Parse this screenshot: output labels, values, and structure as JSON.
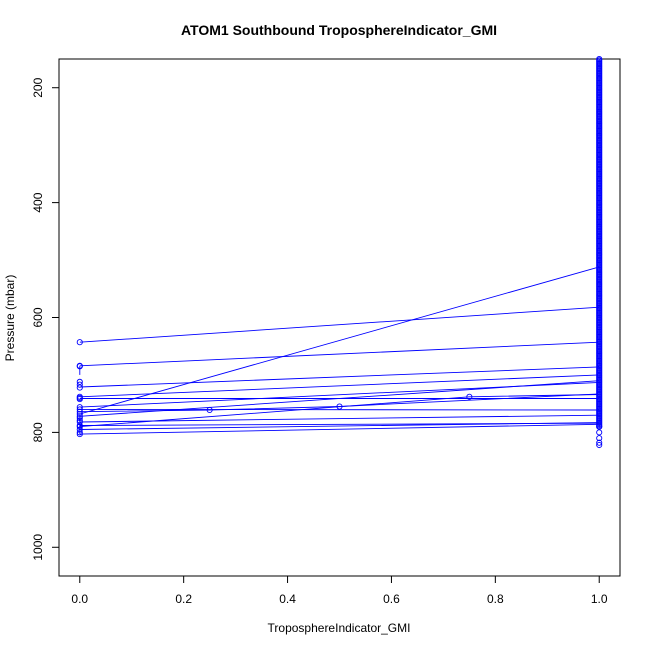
{
  "chart_data": {
    "type": "line",
    "title": "ATOM1 Southbound TroposphereIndicator_GMI",
    "xlabel": "TroposphereIndicator_GMI",
    "ylabel": "Pressure (mbar)",
    "xlim": [
      -0.04,
      1.04
    ],
    "ylim": [
      1050,
      150
    ],
    "y_reversed": true,
    "x_ticks": [
      "0.0",
      "0.2",
      "0.4",
      "0.6",
      "0.8",
      "1.0"
    ],
    "x_tick_values": [
      0,
      0.2,
      0.4,
      0.6,
      0.8,
      1.0
    ],
    "y_ticks": [
      "200",
      "400",
      "600",
      "800",
      "1000"
    ],
    "y_tick_values": [
      200,
      400,
      600,
      800,
      1000
    ],
    "grid": false,
    "legend": "none",
    "color": "#0000ff",
    "line_segments": [
      [
        [
          0,
          643
        ],
        [
          1,
          582
        ]
      ],
      [
        [
          0,
          684
        ],
        [
          1,
          643
        ]
      ],
      [
        [
          0,
          721
        ],
        [
          1,
          686
        ]
      ],
      [
        [
          0,
          738
        ],
        [
          1,
          700
        ]
      ],
      [
        [
          0,
          756
        ],
        [
          1,
          713
        ]
      ],
      [
        [
          0,
          768
        ],
        [
          1,
          512
        ]
      ],
      [
        [
          0,
          772
        ],
        [
          1,
          710
        ]
      ],
      [
        [
          0,
          764
        ],
        [
          0.25,
          761
        ],
        [
          0.5,
          755
        ],
        [
          1,
          733
        ]
      ],
      [
        [
          0,
          790
        ],
        [
          0.75,
          738
        ],
        [
          1,
          734
        ]
      ],
      [
        [
          0,
          760
        ],
        [
          1,
          761
        ]
      ],
      [
        [
          0,
          782
        ],
        [
          1,
          770
        ]
      ],
      [
        [
          0,
          795
        ],
        [
          1,
          783
        ]
      ],
      [
        [
          0,
          788
        ],
        [
          1,
          784
        ]
      ],
      [
        [
          0,
          803
        ],
        [
          1,
          786
        ]
      ],
      [
        [
          0,
          741
        ],
        [
          1,
          741
        ]
      ],
      [
        [
          0,
          684
        ],
        [
          0,
          700
        ]
      ],
      [
        [
          0,
          775
        ],
        [
          0,
          803
        ]
      ]
    ],
    "points_x0": [
      643,
      684,
      685,
      712,
      717,
      722,
      738,
      740,
      742,
      756,
      760,
      764,
      768,
      772,
      775,
      779,
      782,
      788,
      790,
      795,
      800,
      803
    ],
    "points_mid": [
      [
        0.25,
        761
      ],
      [
        0.5,
        755
      ],
      [
        0.75,
        738
      ]
    ],
    "points_x1_range": [
      150,
      822
    ],
    "points_x1_low": [
      790,
      800,
      810,
      818,
      822
    ]
  }
}
